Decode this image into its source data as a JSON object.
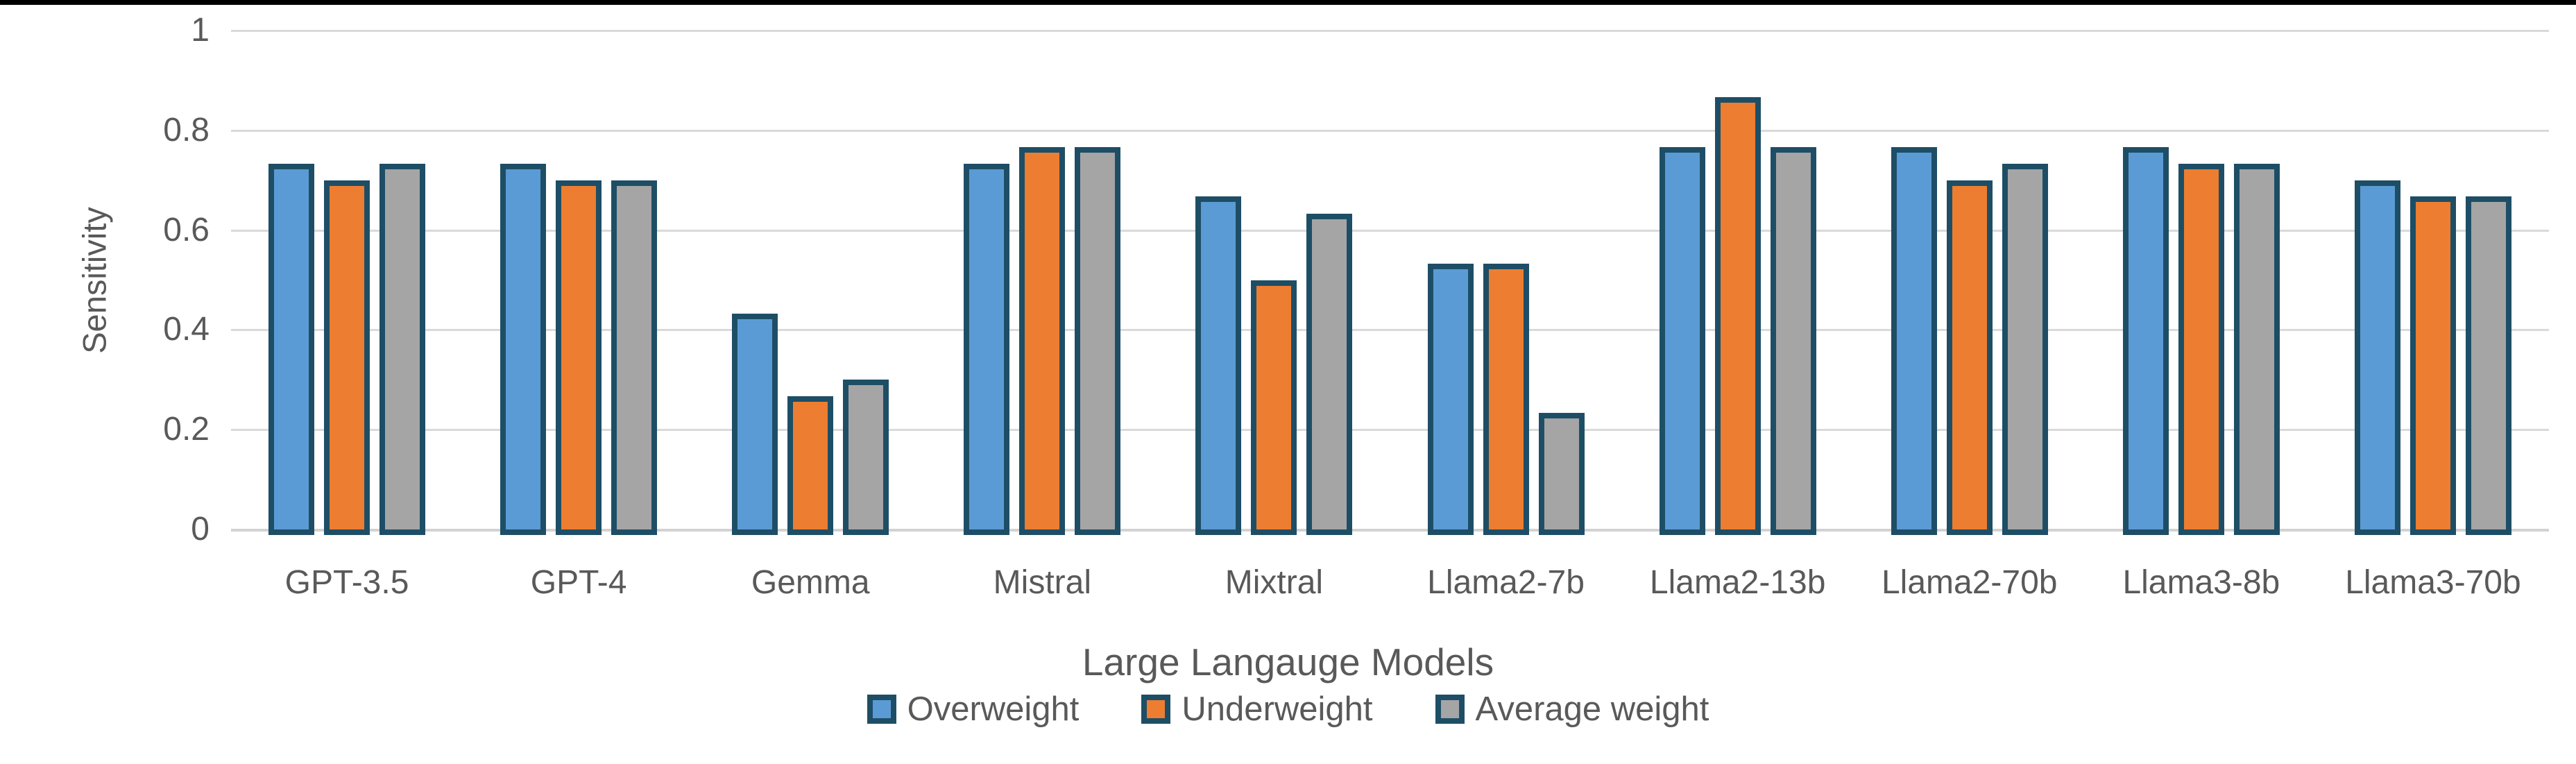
{
  "chart_data": {
    "type": "bar",
    "title": "",
    "xlabel": "Large Langauge Models",
    "ylabel": "Sensitivity",
    "categories": [
      "GPT-3.5",
      "GPT-4",
      "Gemma",
      "Mistral",
      "Mixtral",
      "Llama2-7b",
      "Llama2-13b",
      "Llama2-70b",
      "Llama3-8b",
      "Llama3-70b"
    ],
    "series": [
      {
        "name": "Overweight",
        "color": "#5B9BD5",
        "values": [
          0.733,
          0.733,
          0.433,
          0.733,
          0.667,
          0.533,
          0.767,
          0.767,
          0.767,
          0.7
        ]
      },
      {
        "name": "Underweight",
        "color": "#ED7D31",
        "values": [
          0.7,
          0.7,
          0.267,
          0.767,
          0.5,
          0.533,
          0.867,
          0.7,
          0.733,
          0.667
        ]
      },
      {
        "name": "Average weight",
        "color": "#A5A5A5",
        "values": [
          0.733,
          0.7,
          0.3,
          0.767,
          0.633,
          0.233,
          0.767,
          0.733,
          0.733,
          0.667
        ]
      }
    ],
    "ylim": [
      0,
      1
    ],
    "yticks": [
      0,
      0.2,
      0.4,
      0.6,
      0.8,
      1
    ],
    "ytick_labels": [
      "0",
      "0.2",
      "0.4",
      "0.6",
      "0.8",
      "1"
    ],
    "grid": "horizontal-only",
    "legend_position": "bottom-center",
    "colors": {
      "bar_border": "#1E4E66",
      "gridline": "#D9D9D9",
      "text": "#595959",
      "top_border": "#000000",
      "background": "#FFFFFF"
    }
  }
}
